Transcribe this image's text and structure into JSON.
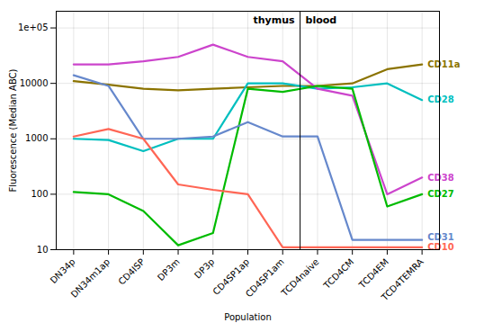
{
  "chart_data": {
    "type": "line",
    "categories": [
      "DN34p",
      "DN34m1ap",
      "CD4ISP",
      "DP3m",
      "DP3p",
      "CD4SP1ap",
      "CD4SP1am",
      "TCD4naive",
      "TCD4CM",
      "TCD4EM",
      "TCD4TEMRA"
    ],
    "series": [
      {
        "name": "CD11a",
        "color": "#8B7300",
        "values": [
          11000,
          9500,
          8000,
          7500,
          8000,
          8500,
          9000,
          9000,
          10000,
          18000,
          22000
        ]
      },
      {
        "name": "CD28",
        "color": "#00BFBF",
        "values": [
          1000,
          950,
          600,
          1000,
          1000,
          10000,
          10000,
          8000,
          8500,
          10000,
          5000
        ]
      },
      {
        "name": "CD38",
        "color": "#CC44CC",
        "values": [
          22000,
          22000,
          25000,
          30000,
          50000,
          30000,
          25000,
          8000,
          6000,
          100,
          200
        ]
      },
      {
        "name": "CD27",
        "color": "#00BB00",
        "values": [
          110,
          100,
          50,
          12,
          20,
          8000,
          7000,
          9000,
          8000,
          60,
          100
        ]
      },
      {
        "name": "CD31",
        "color": "#6688CC",
        "values": [
          14000,
          9000,
          1000,
          1000,
          1100,
          2000,
          1100,
          1100,
          15,
          15,
          15
        ]
      },
      {
        "name": "CD10",
        "color": "#FF6655",
        "values": [
          1100,
          1500,
          1000,
          150,
          120,
          100,
          11,
          11,
          11,
          11,
          11
        ]
      }
    ],
    "xlabel": "Population",
    "ylabel": "Fluorescence (Median ABC)",
    "ylim": [
      10,
      200000
    ],
    "yticks": [
      10,
      100,
      1000,
      10000,
      {
        "value": 100000,
        "label": "1e+05"
      }
    ],
    "log": "y",
    "grid": true,
    "annotations": [
      {
        "text": "thymus",
        "x": "CD4SP1am"
      },
      {
        "text": "blood",
        "x": "TCD4naive"
      }
    ]
  }
}
